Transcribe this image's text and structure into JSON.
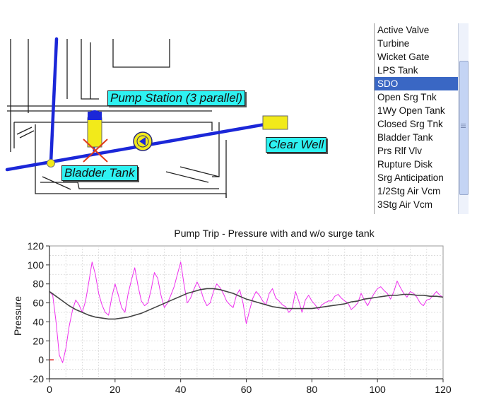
{
  "diagram": {
    "labels": {
      "pump_station": "Pump Station (3 parallel)",
      "clear_well": "Clear Well",
      "bladder_tank": "Bladder Tank"
    },
    "colors": {
      "pipe": "#1b27d8",
      "component": "#f2ea1a",
      "label_bg": "#2ef2f2",
      "cross": "#e03a1a"
    }
  },
  "palette": {
    "items": [
      {
        "label": "Active Valve"
      },
      {
        "label": "Turbine"
      },
      {
        "label": "Wicket Gate"
      },
      {
        "label": "LPS Tank"
      },
      {
        "label": "SDO",
        "selected": true
      },
      {
        "label": "Open Srg Tnk"
      },
      {
        "label": "1Wy Open Tank"
      },
      {
        "label": "Closed Srg Tnk"
      },
      {
        "label": "Bladder Tank"
      },
      {
        "label": "Prs Rlf Vlv"
      },
      {
        "label": "Rupture Disk"
      },
      {
        "label": "Srg Anticipation"
      },
      {
        "label": "1/2Stg Air Vcm"
      },
      {
        "label": "3Stg Air Vcm"
      }
    ]
  },
  "chart_data": {
    "type": "line",
    "title": "Pump Trip - Pressure with and w/o surge tank",
    "xlabel": "",
    "ylabel": "Pressure",
    "xlim": [
      0,
      120
    ],
    "ylim": [
      -20,
      120
    ],
    "x_ticks": [
      "0",
      "20",
      "40",
      "60",
      "80",
      "100",
      "120"
    ],
    "y_ticks": [
      "-20",
      "0",
      "20",
      "40",
      "60",
      "80",
      "100",
      "120"
    ],
    "grid": true,
    "series": [
      {
        "color": "#ee30ee",
        "x": [
          0,
          1,
          2,
          3,
          4,
          5,
          6,
          7,
          8,
          9,
          10,
          11,
          12,
          13,
          14,
          15,
          16,
          17,
          18,
          19,
          20,
          21,
          22,
          23,
          24,
          25,
          26,
          27,
          28,
          29,
          30,
          31,
          32,
          33,
          34,
          35,
          36,
          37,
          38,
          39,
          40,
          41,
          42,
          43,
          44,
          45,
          46,
          47,
          48,
          49,
          50,
          51,
          52,
          53,
          54,
          55,
          56,
          57,
          58,
          59,
          60,
          61,
          62,
          63,
          64,
          65,
          66,
          67,
          68,
          69,
          70,
          71,
          72,
          73,
          74,
          75,
          76,
          77,
          78,
          79,
          80,
          81,
          82,
          83,
          84,
          85,
          86,
          87,
          88,
          89,
          90,
          91,
          92,
          93,
          94,
          95,
          96,
          97,
          98,
          99,
          100,
          101,
          102,
          103,
          104,
          105,
          106,
          107,
          108,
          109,
          110,
          111,
          112,
          113,
          114,
          115,
          116,
          117,
          118,
          119,
          120
        ],
        "y": [
          72,
          68,
          40,
          5,
          -3,
          12,
          35,
          52,
          63,
          58,
          50,
          62,
          82,
          103,
          90,
          70,
          58,
          50,
          47,
          66,
          80,
          68,
          55,
          50,
          70,
          84,
          97,
          78,
          62,
          57,
          60,
          74,
          92,
          86,
          68,
          55,
          60,
          68,
          77,
          90,
          103,
          80,
          60,
          65,
          74,
          82,
          75,
          64,
          57,
          60,
          72,
          80,
          76,
          70,
          62,
          58,
          55,
          68,
          74,
          60,
          38,
          52,
          65,
          72,
          68,
          62,
          58,
          70,
          75,
          65,
          62,
          58,
          56,
          50,
          54,
          72,
          62,
          50,
          63,
          68,
          62,
          58,
          53,
          58,
          60,
          62,
          62,
          67,
          69,
          65,
          62,
          60,
          53,
          56,
          60,
          70,
          63,
          57,
          64,
          70,
          75,
          77,
          73,
          70,
          64,
          72,
          83,
          76,
          70,
          66,
          72,
          70,
          66,
          60,
          57,
          63,
          64,
          68,
          72,
          68,
          66
        ]
      },
      {
        "color": "#444444",
        "x": [
          0,
          2,
          4,
          6,
          8,
          10,
          12,
          14,
          16,
          18,
          20,
          22,
          24,
          26,
          28,
          30,
          32,
          34,
          36,
          38,
          40,
          42,
          44,
          46,
          48,
          50,
          52,
          54,
          56,
          58,
          60,
          62,
          64,
          66,
          68,
          70,
          72,
          74,
          76,
          78,
          80,
          82,
          84,
          86,
          88,
          90,
          92,
          94,
          96,
          98,
          100,
          102,
          104,
          106,
          108,
          110,
          112,
          114,
          116,
          118,
          120
        ],
        "y": [
          72,
          67,
          62,
          57,
          53,
          50,
          47,
          45,
          44,
          43,
          43,
          44,
          45,
          47,
          49,
          52,
          55,
          58,
          61,
          64,
          67,
          70,
          72,
          74,
          75,
          75,
          74,
          72,
          70,
          67,
          64,
          62,
          60,
          58,
          56,
          55,
          54,
          54,
          54,
          54,
          54,
          55,
          56,
          57,
          58,
          59,
          61,
          62,
          64,
          65,
          66,
          67,
          68,
          68,
          69,
          69,
          68,
          68,
          67,
          67,
          66
        ]
      }
    ]
  }
}
